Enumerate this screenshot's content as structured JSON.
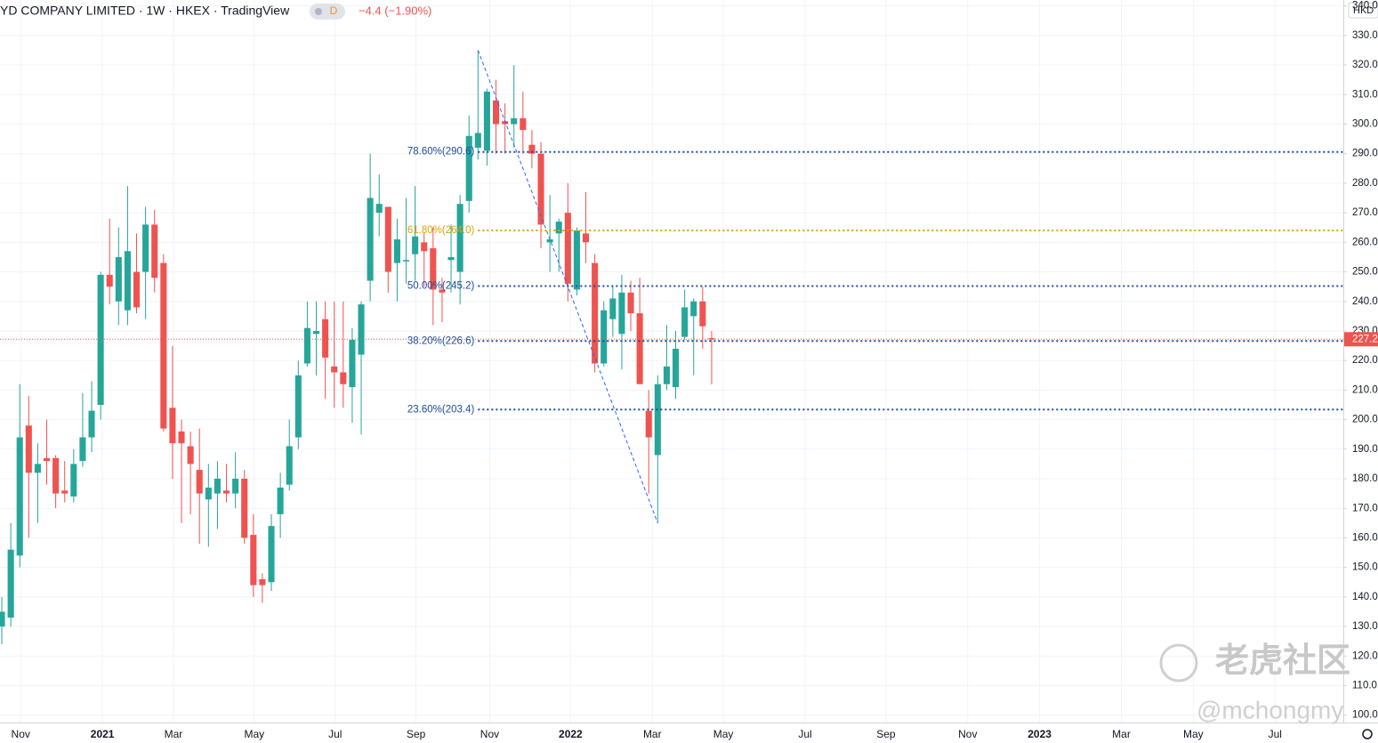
{
  "chart_data": {
    "type": "candlestick",
    "title": "YD COMPANY LIMITED · 1W · HKEX · TradingView",
    "badge": "D",
    "change_label": "−4.4 (−1.90%)",
    "currency": "HKD",
    "up_color": "#26a69a",
    "down_color": "#ef5350",
    "open": [
      130,
      133,
      154,
      198,
      182,
      187,
      187,
      176,
      174,
      186,
      194,
      205,
      249,
      240,
      237,
      250,
      250,
      266,
      253,
      204,
      196,
      191,
      183,
      173,
      175,
      176,
      175,
      180,
      161,
      146,
      145,
      168,
      178,
      194,
      219,
      229,
      234,
      218,
      216,
      211,
      222,
      247,
      270,
      272,
      253,
      254,
      256,
      260,
      258,
      244,
      254,
      250,
      274,
      292,
      291,
      308,
      301,
      300,
      302,
      293,
      290,
      260,
      263,
      270,
      244,
      263,
      253,
      219,
      234,
      229,
      243,
      236,
      203,
      188,
      212,
      211,
      228,
      235,
      240,
      227.6
    ],
    "high": [
      140,
      165,
      212,
      208,
      192,
      200,
      188,
      186,
      190,
      209,
      213,
      250,
      268,
      265,
      279,
      263,
      272,
      271,
      256,
      225,
      200,
      196,
      197,
      185,
      186,
      185,
      189,
      183,
      168,
      148,
      168,
      182,
      200,
      220,
      240,
      240,
      240,
      240,
      240,
      231,
      240,
      290,
      283,
      272,
      268,
      275,
      279,
      263,
      265,
      248,
      266,
      276,
      303,
      325,
      312,
      315,
      307,
      320,
      311,
      298,
      294,
      276,
      268,
      280,
      265,
      277,
      256,
      240,
      245,
      249,
      247,
      248,
      210,
      215,
      232,
      230,
      244,
      241,
      245,
      230
    ],
    "low": [
      124,
      130,
      150,
      160,
      165,
      178,
      170,
      172,
      172,
      184,
      189,
      200,
      239,
      232,
      232,
      236,
      234,
      243,
      196,
      180,
      165,
      168,
      158,
      157,
      163,
      172,
      170,
      158,
      140,
      138,
      142,
      160,
      176,
      190,
      218,
      215,
      207,
      204,
      204,
      199,
      195,
      240,
      262,
      243,
      240,
      246,
      247,
      245,
      232,
      233,
      243,
      239,
      270,
      288,
      286,
      290,
      290,
      292,
      290,
      285,
      258,
      250,
      250,
      240,
      242,
      253,
      216,
      218,
      228,
      217,
      230,
      212,
      175,
      165,
      210,
      207,
      227,
      215,
      224,
      212
    ],
    "close": [
      135,
      156,
      194,
      182,
      185,
      186,
      175,
      175,
      185,
      194,
      203,
      249,
      245,
      255,
      257,
      238,
      266,
      248,
      197,
      192,
      192,
      185,
      175,
      177,
      180,
      175,
      180,
      160,
      144,
      144,
      164,
      177,
      191,
      215,
      231,
      230,
      221,
      216,
      212,
      227,
      239,
      275,
      273,
      250,
      261,
      254,
      262,
      257,
      244,
      243,
      255,
      273,
      296,
      297,
      311,
      300,
      300,
      302,
      298,
      290,
      266,
      261,
      267,
      246,
      264,
      260,
      219,
      237,
      241,
      243,
      236,
      212,
      194,
      212,
      218,
      224,
      238,
      240,
      231.6,
      227.2
    ],
    "last_price": 227.2,
    "xlim": [
      -0.2,
      149.3
    ],
    "xticks": [
      {
        "value": 2.1,
        "label": "Nov"
      },
      {
        "value": 11.2,
        "label": "2021"
      },
      {
        "value": 19.1,
        "label": "Mar"
      },
      {
        "value": 28.1,
        "label": "May"
      },
      {
        "value": 37.1,
        "label": "Jul"
      },
      {
        "value": 46.1,
        "label": "Sep"
      },
      {
        "value": 54.3,
        "label": "Nov"
      },
      {
        "value": 63.3,
        "label": "2022"
      },
      {
        "value": 72.4,
        "label": "Mar"
      },
      {
        "value": 80.3,
        "label": "May"
      },
      {
        "value": 89.4,
        "label": "Jul"
      },
      {
        "value": 98.4,
        "label": "Sep"
      },
      {
        "value": 107.5,
        "label": "Nov"
      },
      {
        "value": 115.5,
        "label": "2023"
      },
      {
        "value": 124.6,
        "label": "Mar"
      },
      {
        "value": 132.6,
        "label": "May"
      },
      {
        "value": 141.7,
        "label": "Jul"
      }
    ],
    "ylim": [
      97.5,
      342
    ],
    "yticks": [
      {
        "value": 100,
        "label": "100.0"
      },
      {
        "value": 110,
        "label": "110.0"
      },
      {
        "value": 120,
        "label": "120.0"
      },
      {
        "value": 130,
        "label": "130.0"
      },
      {
        "value": 140,
        "label": "140.0"
      },
      {
        "value": 150,
        "label": "150.0"
      },
      {
        "value": 160,
        "label": "160.0"
      },
      {
        "value": 170,
        "label": "170.0"
      },
      {
        "value": 180,
        "label": "180.0"
      },
      {
        "value": 190,
        "label": "190.0"
      },
      {
        "value": 200,
        "label": "200.0"
      },
      {
        "value": 210,
        "label": "210.0"
      },
      {
        "value": 220,
        "label": "220.0"
      },
      {
        "value": 230,
        "label": "230.0"
      },
      {
        "value": 240,
        "label": "240.0"
      },
      {
        "value": 250,
        "label": "250.0"
      },
      {
        "value": 260,
        "label": "260.0"
      },
      {
        "value": 270,
        "label": "270.0"
      },
      {
        "value": 280,
        "label": "280.0"
      },
      {
        "value": 290,
        "label": "290.0"
      },
      {
        "value": 300,
        "label": "300.0"
      },
      {
        "value": 310,
        "label": "310.0"
      },
      {
        "value": 320,
        "label": "320.0"
      },
      {
        "value": 330,
        "label": "330.0"
      },
      {
        "value": 340,
        "label": "340.0"
      }
    ],
    "grid": true,
    "trendline": {
      "x": [
        53,
        73
      ],
      "y": [
        325,
        165
      ],
      "color": "#2962ff"
    },
    "fib_levels": [
      {
        "label": "78.60%(290.6)",
        "value": 290.6,
        "color": "#1e4b9c"
      },
      {
        "label": "61.80%(264.0)",
        "value": 264.0,
        "color": "#e0a000"
      },
      {
        "label": "50.00%(245.2)",
        "value": 245.2,
        "color": "#1e4b9c"
      },
      {
        "label": "38.20%(226.6)",
        "value": 226.6,
        "color": "#1e4b9c"
      },
      {
        "label": "23.60%(203.4)",
        "value": 203.4,
        "color": "#1e4b9c"
      }
    ],
    "fib_start": 53,
    "watermarks": [
      "老虎社区",
      "@mchongmy"
    ]
  }
}
